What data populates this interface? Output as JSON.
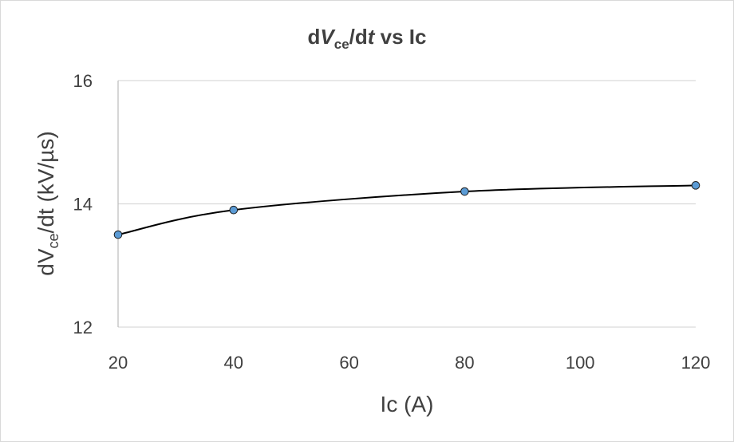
{
  "chart_data": {
    "type": "scatter",
    "title": {
      "pre": "d",
      "var": "V",
      "sub": "ce",
      "mid": "/d",
      "var2": "t",
      "post": " vs Ic"
    },
    "xlabel": "Ic (A)",
    "ylabel": {
      "pre": "dV",
      "sub": "ce",
      "post": "/dt (kV/µs)"
    },
    "xlim": [
      20,
      120
    ],
    "ylim": [
      12,
      16
    ],
    "xticks": [
      "20",
      "40",
      "60",
      "80",
      "100",
      "120"
    ],
    "yticks": [
      "12",
      "14",
      "16"
    ],
    "grid": true,
    "line": "smooth",
    "series": [
      {
        "x": [
          20,
          40,
          80,
          120
        ],
        "y": [
          13.5,
          13.9,
          14.2,
          14.3
        ],
        "marker_color": "#5b9bd5",
        "line_color": "#000000"
      }
    ]
  }
}
